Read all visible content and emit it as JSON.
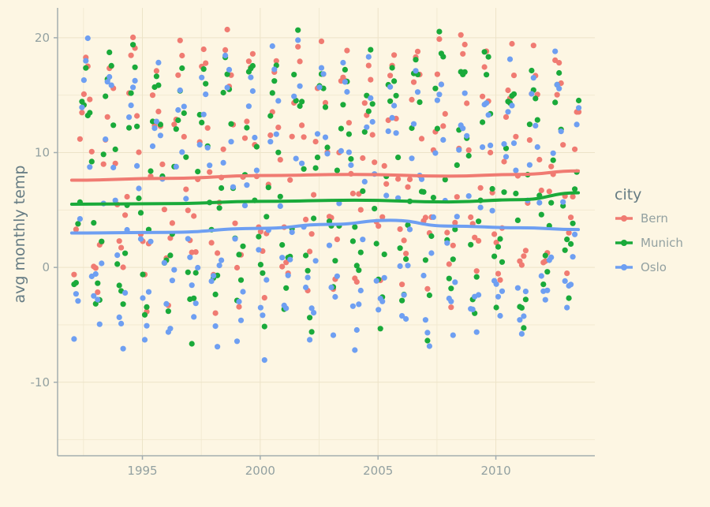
{
  "chart_data": {
    "type": "scatter",
    "title": "",
    "xlabel": "",
    "ylabel": "avg monthly temp",
    "xlim": [
      1991.4,
      2014.2
    ],
    "ylim": [
      -16.4,
      22.6
    ],
    "x_ticks": [
      1995,
      2000,
      2005,
      2010
    ],
    "x_tick_labels": [
      "1995",
      "2000",
      "2005",
      "2010"
    ],
    "y_ticks": [
      -10,
      0,
      10,
      20
    ],
    "y_tick_labels": [
      "-10",
      "0",
      "10",
      "20"
    ],
    "grid": true,
    "legend": {
      "title": "city",
      "position": "right"
    },
    "point_density_per_year": 12,
    "series": [
      {
        "name": "Bern",
        "color": "#f07b72",
        "year_range": [
          1992.1,
          2013.5
        ],
        "seasonal_mean": [
          0.0,
          1.4,
          4.6,
          8.4,
          12.7,
          15.9,
          17.8,
          17.3,
          13.8,
          9.5,
          4.2,
          1.0
        ],
        "smooth_trend": [
          [
            1992,
            7.6
          ],
          [
            1996,
            7.75
          ],
          [
            2000,
            8.0
          ],
          [
            2004,
            8.1
          ],
          [
            2008,
            7.95
          ],
          [
            2011,
            8.1
          ],
          [
            2013.5,
            8.4
          ]
        ]
      },
      {
        "name": "Munich",
        "color": "#1aaa3a",
        "year_range": [
          1992.1,
          2013.5
        ],
        "seasonal_mean": [
          -2.3,
          -1.0,
          3.0,
          7.6,
          12.3,
          15.3,
          17.2,
          16.6,
          12.8,
          8.2,
          2.4,
          -1.0
        ],
        "smooth_trend": [
          [
            1992,
            5.5
          ],
          [
            1996,
            5.55
          ],
          [
            2000,
            5.75
          ],
          [
            2004,
            5.85
          ],
          [
            2008,
            5.7
          ],
          [
            2011,
            5.9
          ],
          [
            2013.5,
            6.5
          ]
        ]
      },
      {
        "name": "Oslo",
        "color": "#6e9ff2",
        "year_range": [
          1992.1,
          2013.5
        ],
        "seasonal_mean": [
          -4.8,
          -4.6,
          -1.2,
          4.2,
          10.4,
          14.6,
          16.2,
          15.3,
          10.8,
          6.0,
          0.6,
          -3.5
        ],
        "smooth_trend": [
          [
            1992,
            3.0
          ],
          [
            1996,
            3.05
          ],
          [
            2000,
            3.4
          ],
          [
            2003,
            3.75
          ],
          [
            2005.5,
            4.1
          ],
          [
            2008,
            3.6
          ],
          [
            2011,
            3.45
          ],
          [
            2013.5,
            3.3
          ]
        ]
      }
    ]
  }
}
